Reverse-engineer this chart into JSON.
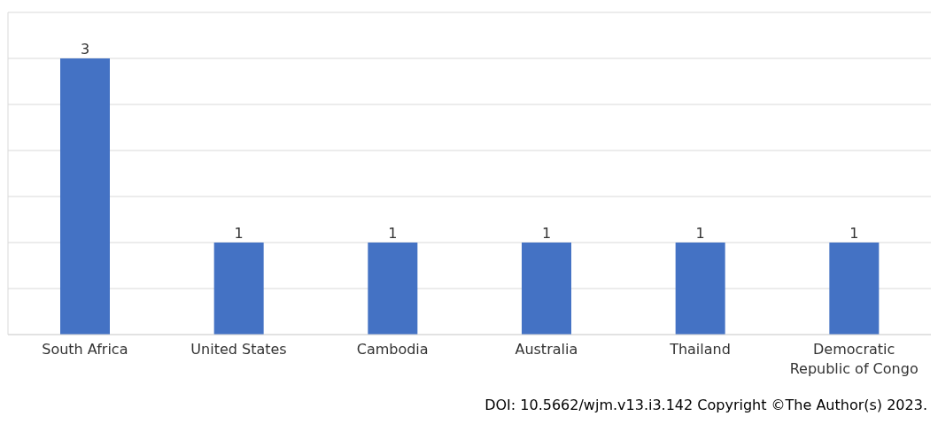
{
  "chart_data": {
    "type": "bar",
    "categories": [
      "South Africa",
      "United States",
      "Cambodia",
      "Australia",
      "Thailand",
      "Democratic Republic of Congo"
    ],
    "values": [
      3,
      1,
      1,
      1,
      1,
      1
    ],
    "color": "#4472c4",
    "data_labels": true,
    "ylim": [
      0,
      3.5
    ],
    "grid": "y",
    "tick_labels": "x",
    "annotations": [
      "DOI: 10.5662/wjm.v13.i3.142 Copyright ©The Author(s) 2023."
    ]
  }
}
